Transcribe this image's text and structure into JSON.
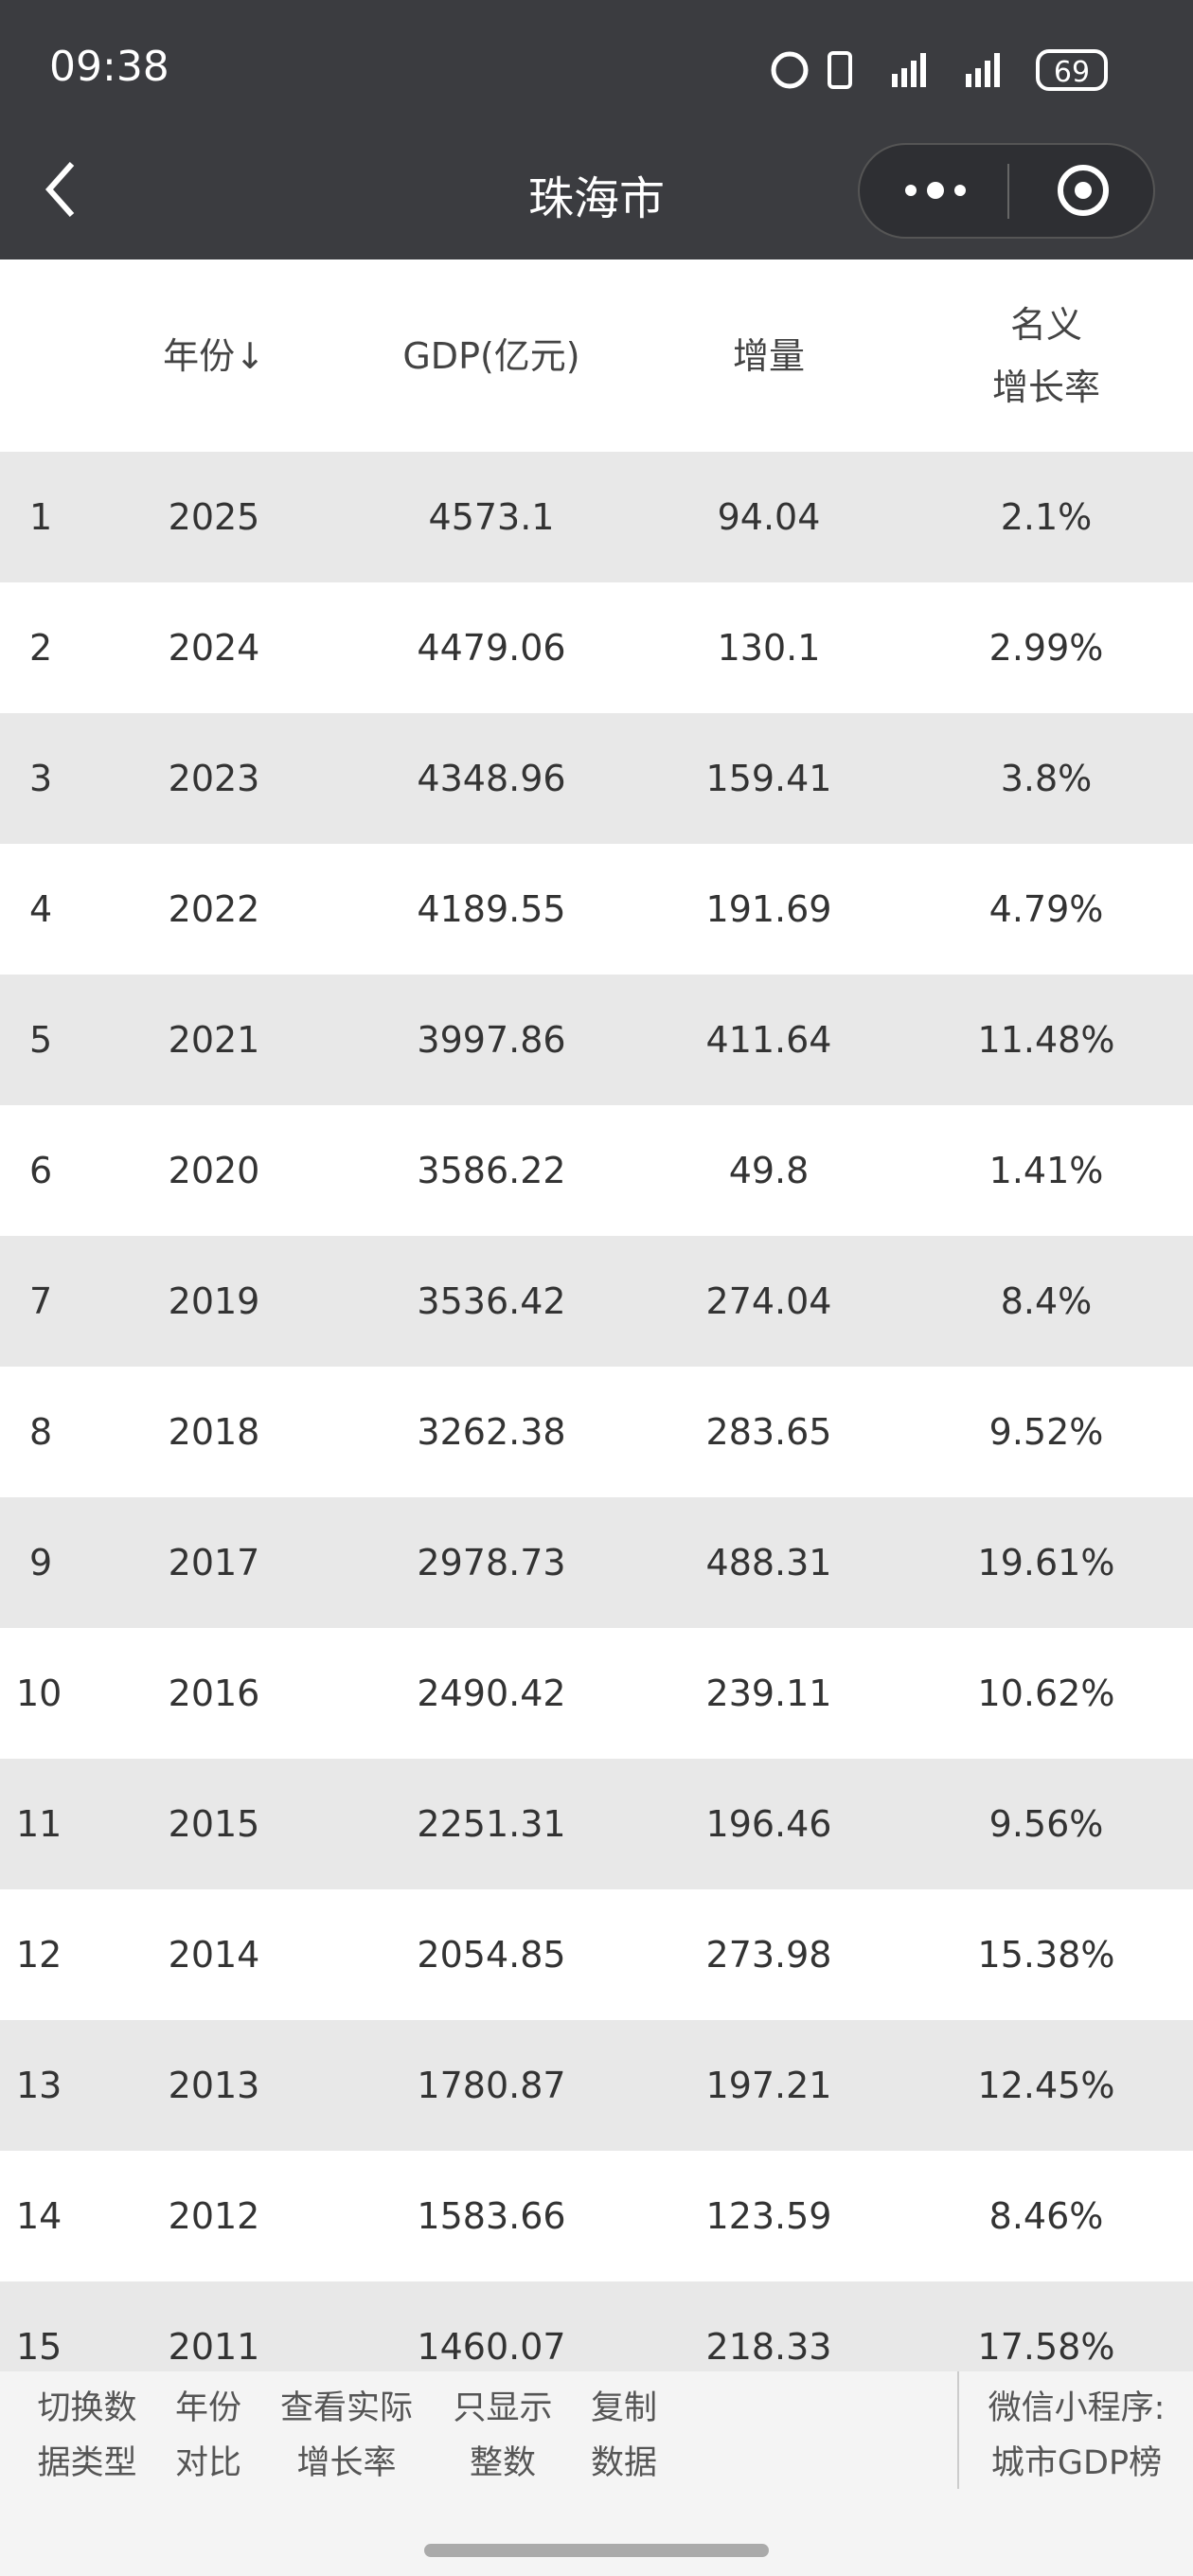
{
  "status_bar": {
    "time": "09:38",
    "battery": "69"
  },
  "nav": {
    "title": "珠海市"
  },
  "table": {
    "headers": [
      "年份↓",
      "GDP(亿元)",
      "增量",
      "名义\n增长率"
    ],
    "rows": [
      [
        "1",
        "2025",
        "4573.1",
        "94.04",
        "2.1%"
      ],
      [
        "2",
        "2024",
        "4479.06",
        "130.1",
        "2.99%"
      ],
      [
        "3",
        "2023",
        "4348.96",
        "159.41",
        "3.8%"
      ],
      [
        "4",
        "2022",
        "4189.55",
        "191.69",
        "4.79%"
      ],
      [
        "5",
        "2021",
        "3997.86",
        "411.64",
        "11.48%"
      ],
      [
        "6",
        "2020",
        "3586.22",
        "49.8",
        "1.41%"
      ],
      [
        "7",
        "2019",
        "3536.42",
        "274.04",
        "8.4%"
      ],
      [
        "8",
        "2018",
        "3262.38",
        "283.65",
        "9.52%"
      ],
      [
        "9",
        "2017",
        "2978.73",
        "488.31",
        "19.61%"
      ],
      [
        "10",
        "2016",
        "2490.42",
        "239.11",
        "10.62%"
      ],
      [
        "11",
        "2015",
        "2251.31",
        "196.46",
        "9.56%"
      ],
      [
        "12",
        "2014",
        "2054.85",
        "273.98",
        "15.38%"
      ],
      [
        "13",
        "2013",
        "1780.87",
        "197.21",
        "12.45%"
      ],
      [
        "14",
        "2012",
        "1583.66",
        "123.59",
        "8.46%"
      ],
      [
        "15",
        "2011",
        "1460.07",
        "218.33",
        "17.58%"
      ]
    ]
  },
  "toolbar": {
    "buttons": [
      "切换数\n据类型",
      "年份\n对比",
      "查看实际\n增长率",
      "只显示\n整数",
      "复制\n数据"
    ],
    "promo": "微信小程序:\n城市GDP榜"
  }
}
